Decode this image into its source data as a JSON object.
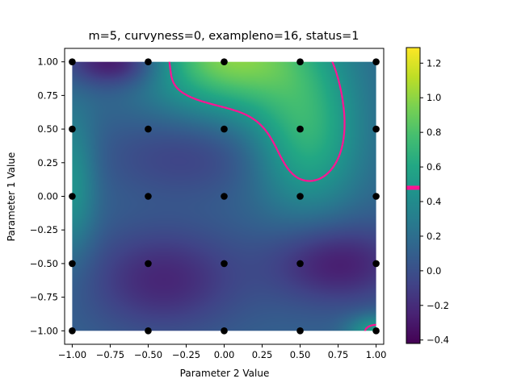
{
  "chart_data": {
    "type": "heatmap",
    "title": "m=5, curvyness=0, exampleno=16, status=1",
    "xlabel": "Parameter 2 Value",
    "ylabel": "Parameter 1 Value",
    "xlim": [
      -1.05,
      1.05
    ],
    "ylim": [
      -1.1,
      1.1
    ],
    "xticks": [
      -1.0,
      -0.75,
      -0.5,
      -0.25,
      0.0,
      0.25,
      0.5,
      0.75,
      1.0
    ],
    "xtick_labels": [
      "−1.00",
      "−0.75",
      "−0.50",
      "−0.25",
      "0.00",
      "0.25",
      "0.50",
      "0.75",
      "1.00"
    ],
    "yticks": [
      1.0,
      0.75,
      0.5,
      0.25,
      0.0,
      -0.25,
      -0.5,
      -0.75,
      -1.0
    ],
    "ytick_labels": [
      "1.00",
      "0.75",
      "0.50",
      "0.25",
      "0.00",
      "−0.25",
      "−0.50",
      "−0.75",
      "−1.00"
    ],
    "colormap": "viridis",
    "colorbar": {
      "range": [
        -0.42,
        1.29
      ],
      "ticks": [
        1.2,
        1.0,
        0.8,
        0.6,
        0.4,
        0.2,
        0.0,
        -0.2,
        -0.4
      ],
      "tick_labels": [
        "1.2",
        "1.0",
        "0.8",
        "0.6",
        "0.4",
        "0.2",
        "0.0",
        "−0.2",
        "−0.4"
      ],
      "marker_value": 0.48,
      "marker_color": "#ff1493"
    },
    "contour_level": 0.48,
    "contour_color": "#ff1493",
    "sample_points": [
      [
        -1,
        1
      ],
      [
        -0.5,
        1
      ],
      [
        0,
        1
      ],
      [
        0.5,
        1
      ],
      [
        1,
        1
      ],
      [
        -1,
        0.5
      ],
      [
        -0.5,
        0.5
      ],
      [
        0,
        0.5
      ],
      [
        0.5,
        0.5
      ],
      [
        1,
        0.5
      ],
      [
        -1,
        0
      ],
      [
        -0.5,
        0
      ],
      [
        0,
        0
      ],
      [
        0.5,
        0
      ],
      [
        1,
        0
      ],
      [
        -1,
        -0.5
      ],
      [
        -0.5,
        -0.5
      ],
      [
        0,
        -0.5
      ],
      [
        0.5,
        -0.5
      ],
      [
        1,
        -0.5
      ],
      [
        -1,
        -1
      ],
      [
        -0.5,
        -1
      ],
      [
        0,
        -1
      ],
      [
        0.5,
        -1
      ],
      [
        1,
        -1
      ]
    ],
    "point_color": "#000000",
    "grid": false,
    "legend": "none"
  }
}
